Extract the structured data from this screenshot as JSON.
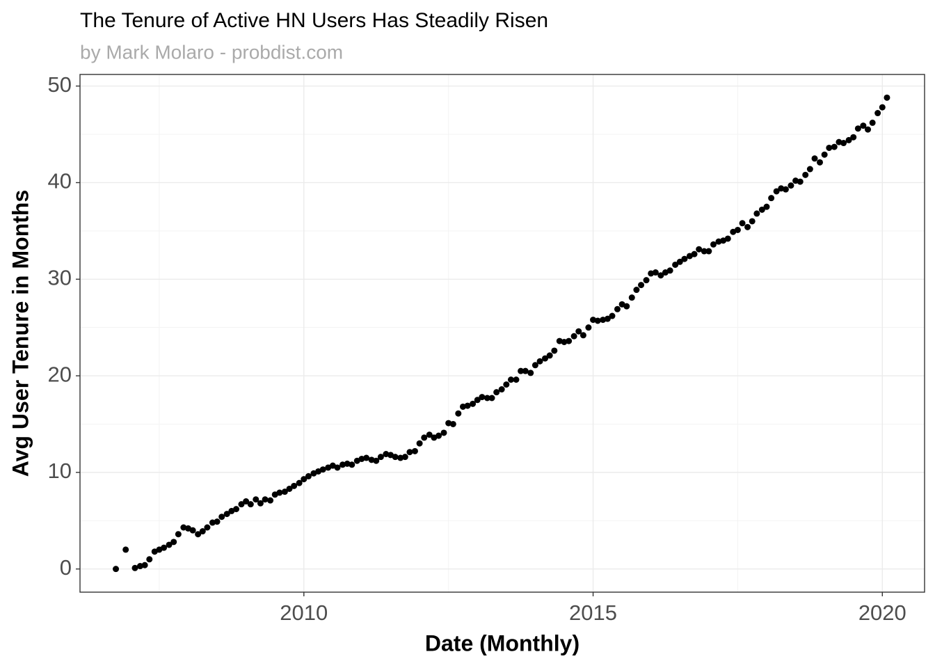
{
  "chart_data": {
    "type": "scatter",
    "title": "The Tenure of Active HN Users Has Steadily Risen",
    "subtitle": "by Mark Molaro - probdist.com",
    "x_label": "Date (Monthly)",
    "y_label": "Avg User Tenure in Months",
    "color": "#000000",
    "grid": true,
    "xlim": [
      2006.13,
      2020.73
    ],
    "xticks": [
      2010,
      2015,
      2020
    ],
    "ylim": [
      -2.4,
      51.2
    ],
    "yticks": [
      0,
      10,
      20,
      30,
      40,
      50
    ],
    "x": [
      2006.75,
      2006.92,
      2007.08,
      2007.17,
      2007.25,
      2007.33,
      2007.42,
      2007.5,
      2007.58,
      2007.67,
      2007.75,
      2007.83,
      2007.92,
      2008.0,
      2008.08,
      2008.17,
      2008.25,
      2008.33,
      2008.42,
      2008.5,
      2008.58,
      2008.67,
      2008.75,
      2008.83,
      2008.92,
      2009.0,
      2009.08,
      2009.17,
      2009.25,
      2009.33,
      2009.42,
      2009.5,
      2009.58,
      2009.67,
      2009.75,
      2009.83,
      2009.92,
      2010.0,
      2010.08,
      2010.17,
      2010.25,
      2010.33,
      2010.42,
      2010.5,
      2010.58,
      2010.67,
      2010.75,
      2010.83,
      2010.92,
      2011.0,
      2011.08,
      2011.17,
      2011.25,
      2011.33,
      2011.42,
      2011.5,
      2011.58,
      2011.67,
      2011.75,
      2011.83,
      2011.92,
      2012.0,
      2012.08,
      2012.17,
      2012.25,
      2012.33,
      2012.42,
      2012.5,
      2012.58,
      2012.67,
      2012.75,
      2012.83,
      2012.92,
      2013.0,
      2013.08,
      2013.17,
      2013.25,
      2013.33,
      2013.42,
      2013.5,
      2013.58,
      2013.67,
      2013.75,
      2013.83,
      2013.92,
      2014.0,
      2014.08,
      2014.17,
      2014.25,
      2014.33,
      2014.42,
      2014.5,
      2014.58,
      2014.67,
      2014.75,
      2014.83,
      2014.92,
      2015.0,
      2015.08,
      2015.17,
      2015.25,
      2015.33,
      2015.42,
      2015.5,
      2015.58,
      2015.67,
      2015.75,
      2015.83,
      2015.92,
      2016.0,
      2016.08,
      2016.17,
      2016.25,
      2016.33,
      2016.42,
      2016.5,
      2016.58,
      2016.67,
      2016.75,
      2016.83,
      2016.92,
      2017.0,
      2017.08,
      2017.17,
      2017.25,
      2017.33,
      2017.42,
      2017.5,
      2017.58,
      2017.67,
      2017.75,
      2017.83,
      2017.92,
      2018.0,
      2018.08,
      2018.17,
      2018.25,
      2018.33,
      2018.42,
      2018.5,
      2018.58,
      2018.67,
      2018.75,
      2018.83,
      2018.92,
      2019.0,
      2019.08,
      2019.17,
      2019.25,
      2019.33,
      2019.42,
      2019.5,
      2019.58,
      2019.67,
      2019.75,
      2019.83,
      2019.92,
      2020.0,
      2020.08
    ],
    "values": [
      0,
      2.0,
      0.1,
      0.3,
      0.4,
      1.0,
      1.8,
      2.0,
      2.2,
      2.5,
      2.8,
      3.6,
      4.3,
      4.2,
      4.0,
      3.6,
      3.9,
      4.3,
      4.8,
      4.9,
      5.4,
      5.7,
      6.0,
      6.2,
      6.7,
      7.0,
      6.7,
      7.2,
      6.8,
      7.2,
      7.1,
      7.7,
      7.9,
      8.0,
      8.3,
      8.6,
      8.9,
      9.3,
      9.6,
      9.9,
      10.1,
      10.3,
      10.5,
      10.7,
      10.5,
      10.8,
      10.9,
      10.8,
      11.2,
      11.4,
      11.5,
      11.3,
      11.2,
      11.6,
      11.9,
      11.8,
      11.6,
      11.5,
      11.6,
      12.1,
      12.2,
      13.0,
      13.6,
      13.9,
      13.6,
      13.8,
      14.1,
      15.1,
      15.0,
      16.1,
      16.8,
      16.9,
      17.1,
      17.5,
      17.8,
      17.7,
      17.7,
      18.3,
      18.6,
      19.1,
      19.6,
      19.6,
      20.5,
      20.5,
      20.3,
      21.1,
      21.5,
      21.8,
      22.1,
      22.6,
      23.6,
      23.5,
      23.6,
      24.1,
      24.6,
      24.2,
      25.0,
      25.8,
      25.7,
      25.8,
      25.9,
      26.2,
      26.9,
      27.4,
      27.2,
      28.1,
      28.9,
      29.4,
      29.9,
      30.6,
      30.7,
      30.4,
      30.7,
      30.9,
      31.5,
      31.8,
      32.1,
      32.4,
      32.6,
      33.1,
      32.9,
      32.9,
      33.6,
      33.9,
      34.0,
      34.2,
      34.9,
      35.1,
      35.8,
      35.4,
      36.0,
      36.8,
      37.2,
      37.5,
      38.4,
      39.1,
      39.4,
      39.3,
      39.7,
      40.2,
      40.1,
      40.8,
      41.4,
      42.5,
      42.1,
      42.9,
      43.6,
      43.7,
      44.2,
      44.1,
      44.4,
      44.7,
      45.6,
      45.9,
      45.5,
      46.2,
      47.2,
      47.8,
      48.8
    ]
  }
}
